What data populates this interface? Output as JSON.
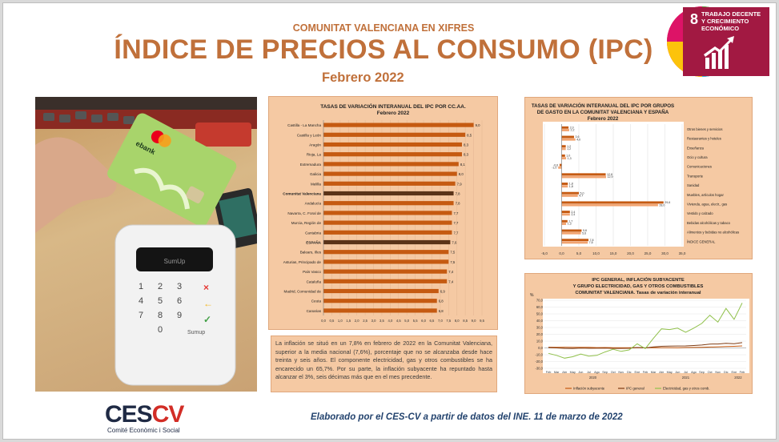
{
  "header": {
    "subtitle": "COMUNITAT VALENCIANA EN XIFRES",
    "title": "ÍNDICE DE PRECIOS AL CONSUMO (IPC)",
    "date": "Febrero 2022"
  },
  "sdg": {
    "number": "8",
    "line1": "TRABAJO DECENTE",
    "line2": "Y CRECIMIENTO",
    "line3": "ECONÓMICO",
    "color": "#a21942",
    "icon": "growth-chart-icon"
  },
  "photo": {
    "card_brand": "ebank",
    "terminal_screen": "SumUp",
    "terminal_brand": "Sumup"
  },
  "text_summary": "La inflación se situó en un 7,8% en febrero de 2022 en la Comunitat Valenciana, superior a la media nacional (7,6%), porcentaje que no se alcanzaba desde hace treinta y seis años. El componente electricidad, gas y otros combustibles se ha encarecido un 65,7%. Por su parte, la inflación subyacente ha repuntado hasta alcanzar el 3%, seis décimas más que en el mes precedente.",
  "logo": {
    "name": "CESCV",
    "subtitle": "Comité Econòmic i Social"
  },
  "footer": "Elaborado por el CES-CV a partir de datos del INE. 11 de marzo de 2022",
  "colors": {
    "accent": "#c0703a",
    "panel": "#f5c9a3",
    "bar": "#c55a11",
    "highlight": "#5a3318",
    "footer": "#23436e"
  },
  "chart_data": [
    {
      "type": "bar",
      "orientation": "horizontal",
      "title": "TASAS DE VARIACIÓN INTERANUAL DEL IPC POR CC.AA.",
      "subtitle": "Febrero 2022",
      "categories": [
        "Castilla - La Mancha",
        "Castilla y León",
        "Aragón",
        "Rioja, La",
        "Extremadura",
        "Galicia",
        "Melilla",
        "Comunitat Valenciana",
        "Andalucía",
        "Navarra, C. Foral de",
        "Murcia, Región de",
        "Cantabria",
        "ESPAÑA",
        "Balears, Illes",
        "Asturias, Principado de",
        "País Vasco",
        "Cataluña",
        "Madrid, Comunidad de",
        "Ceuta",
        "Canarias"
      ],
      "values": [
        9.0,
        8.5,
        8.3,
        8.3,
        8.1,
        8.0,
        7.9,
        7.8,
        7.8,
        7.7,
        7.7,
        7.7,
        7.6,
        7.5,
        7.5,
        7.4,
        7.4,
        6.9,
        6.8,
        6.8
      ],
      "value_labels": [
        "9,0",
        "8,5",
        "8,3",
        "8,3",
        "8,1",
        "8,0",
        "7,9",
        "7,8",
        "7,8",
        "7,7",
        "7,7",
        "7,7",
        "7,6",
        "7,5",
        "7,5",
        "7,4",
        "7,4",
        "6,9",
        "6,8",
        "6,8"
      ],
      "highlight": [
        "Comunitat Valenciana",
        "ESPAÑA"
      ],
      "xticks": [
        "0,0",
        "0,5",
        "1,0",
        "1,5",
        "2,0",
        "2,5",
        "3,0",
        "3,5",
        "4,0",
        "4,5",
        "5,0",
        "5,5",
        "6,0",
        "6,5",
        "7,0",
        "7,5",
        "8,0",
        "8,5",
        "9,0",
        "9,5"
      ],
      "xlim": [
        0,
        9.5
      ]
    },
    {
      "type": "bar",
      "orientation": "horizontal",
      "title": "TASAS DE VARIACIÓN INTERANUAL DEL IPC POR GRUPOS DE GASTO EN LA COMUNITAT VALENCIANA Y ESPAÑA",
      "title_line1": "TASAS DE VARIACIÓN INTERANUAL DEL IPC POR GRUPOS",
      "title_line2": "DE GASTO EN LA COMUNITAT VALENCIANA Y ESPAÑA",
      "subtitle": "Febrero 2022",
      "categories": [
        "Otros bienes y servicios",
        "Restaurantes y hoteles",
        "Enseñanza",
        "Ocio y cultura",
        "Comunicaciones",
        "Transporte",
        "Sanidad",
        "Muebles, artículos hogar",
        "Vivienda, agua, electr., gas",
        "Vestido y calzado",
        "Bebidas alcohólicas y tabaco",
        "Alimentos y bebidas no alcohólicas",
        "ÍNDICE GENERAL"
      ],
      "series": [
        {
          "name": "Comunitat Valenciana",
          "values": [
            2.0,
            3.6,
            1.2,
            1.0,
            -0.6,
            12.8,
            1.8,
            5.0,
            29.6,
            2.4,
            1.7,
            5.8,
            7.8
          ],
          "labels": [
            "2,0",
            "3,6",
            "1,2",
            "1,0",
            "-0,6",
            "12,8",
            "1,8",
            "5,0",
            "29,6",
            "2,4",
            "1,7",
            "5,8",
            "7,8"
          ]
        },
        {
          "name": "España",
          "values": [
            2.2,
            4.0,
            1.2,
            1.3,
            -1.0,
            12.9,
            1.8,
            4.7,
            28.0,
            2.4,
            1.3,
            5.6,
            7.6
          ],
          "labels": [
            "2,2",
            "4,0",
            "1,2",
            "1,3",
            "-1,0",
            "12,9",
            "1,8",
            "4,7",
            "28,0",
            "2,4",
            "1,3",
            "5,6",
            "7,6"
          ]
        }
      ],
      "xticks": [
        "-5,0",
        "0,0",
        "5,0",
        "10,0",
        "15,0",
        "20,0",
        "25,0",
        "30,0",
        "35,0"
      ],
      "xlim": [
        -5,
        35
      ]
    },
    {
      "type": "line",
      "title_line1": "IPC GENERAL, INFLACIÓN SUBYACENTE",
      "title_line2": "Y GRUPO ELECTRICIDAD, GAS Y OTROS COMBUSTIBLES",
      "title_line3": "COMUNITAT VALENCIANA. Tasas de variación interanual",
      "ylabel": "%",
      "x": [
        "Feb",
        "Mar",
        "Abr",
        "May",
        "Jun",
        "Jul",
        "Ago",
        "Sep",
        "Oct",
        "Nov",
        "Dic",
        "Ene",
        "Feb",
        "Mar",
        "Abr",
        "May",
        "Jun",
        "Jul",
        "Ago",
        "Sep",
        "Oct",
        "Nov",
        "Dic",
        "Ene",
        "Feb"
      ],
      "year_labels": [
        "2020",
        "2021",
        "2022"
      ],
      "yticks": [
        "-30,0",
        "-20,0",
        "-10,0",
        "0,0",
        "10,0",
        "20,0",
        "30,0",
        "40,0",
        "50,0",
        "60,0",
        "70,0"
      ],
      "ylim": [
        -30,
        70
      ],
      "series": [
        {
          "name": "Inflación subyacente",
          "color": "#c55a11",
          "values": [
            1.1,
            1.0,
            1.1,
            1.0,
            0.9,
            0.8,
            0.5,
            0.6,
            0.3,
            0.3,
            0.2,
            0.5,
            0.1,
            0.5,
            0.2,
            0.2,
            0.1,
            0.6,
            0.7,
            0.9,
            1.3,
            1.7,
            2.0,
            2.4,
            3.0
          ]
        },
        {
          "name": "IPC general",
          "color": "#7f3b12",
          "values": [
            0.5,
            0.0,
            -0.7,
            -0.9,
            -0.4,
            -0.6,
            -0.5,
            -0.4,
            -0.7,
            -0.7,
            -0.6,
            0.6,
            0.0,
            1.4,
            2.3,
            2.7,
            2.8,
            3.0,
            3.5,
            4.2,
            5.6,
            5.8,
            6.8,
            6.2,
            7.8
          ]
        },
        {
          "name": "Electricidad, gas y otros comb.",
          "color": "#8fc04a",
          "values": [
            -8,
            -11,
            -15,
            -13,
            -9,
            -12,
            -11,
            -6,
            -2,
            -5,
            -3,
            6,
            -1,
            14,
            28,
            27,
            29,
            23,
            29,
            36,
            48,
            38,
            58,
            42,
            66
          ]
        }
      ]
    }
  ]
}
